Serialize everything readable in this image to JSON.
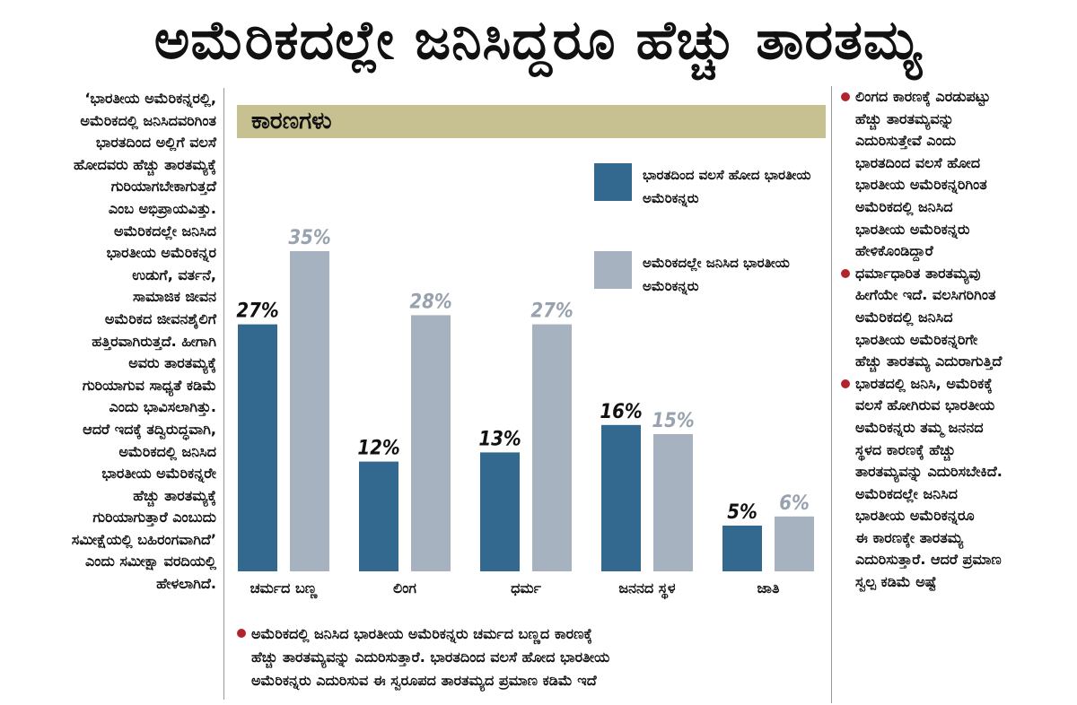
{
  "headline": "ಅಮೆರಿಕದಲ್ಲೇ ಜನಿಸಿದ್ದರೂ ಹೆಚ್ಚು ತಾರತಮ್ಯ",
  "left_column": [
    "‘ಭಾರತೀಯ ಅಮೆರಿಕನ್ನರಲ್ಲಿ,",
    "ಅಮೆರಿಕದಲ್ಲಿ ಜನಿಸಿದವರಿಗಿಂತ",
    "ಭಾರತದಿಂದ ಅಲ್ಲಿಗೆ ವಲಸೆ",
    "ಹೋದವರು ಹೆಚ್ಚು ತಾರತಮ್ಯಕ್ಕೆ",
    "ಗುರಿಯಾಗಬೇಕಾಗುತ್ತದೆ",
    "ಎಂಬ ಅಭಿಪ್ರಾಯವಿತ್ತು.",
    "ಅಮೆರಿಕದಲ್ಲೇ ಜನಿಸಿದ",
    "ಭಾರತೀಯ ಅಮೆರಿಕನ್ನರ",
    "ಉಡುಗೆ, ವರ್ತನೆ,",
    "ಸಾಮಾಜಿಕ ಜೀವನ",
    "ಅಮೆರಿಕದ ಜೀವನಶೈಲಿಗೆ",
    "ಹತ್ತಿರವಾಗಿರುತ್ತದೆ. ಹೀಗಾಗಿ",
    "ಅವರು ತಾರತಮ್ಯಕ್ಕೆ",
    "ಗುರಿಯಾಗುವ ಸಾಧ್ಯತೆ ಕಡಿಮೆ",
    "ಎಂದು ಭಾವಿಸಲಾಗಿತ್ತು.",
    "ಆದರೆ ಇದಕ್ಕೆ ತದ್ವಿರುದ್ಧವಾಗಿ,",
    "ಅಮೆರಿಕದಲ್ಲಿ ಜನಿಸಿದ",
    "ಭಾರತೀಯ ಅಮೆರಿಕನ್ನರೇ",
    "ಹೆಚ್ಚು ತಾರತಮ್ಯಕ್ಕೆ",
    "ಗುರಿಯಾಗುತ್ತಾರೆ ಎಂಬುದು",
    "ಸಮೀಕ್ಷೆಯಲ್ಲಿ ಬಹಿರಂಗವಾಗಿದೆ’",
    "ಎಂದು ಸಮೀಕ್ಷಾ ವರದಿಯಲ್ಲಿ",
    "ಹೇಳಲಾಗಿದೆ."
  ],
  "right_column": [
    {
      "lines": [
        "ಲಿಂಗದ ಕಾರಣಕ್ಕೆ ಎರಡುಪಟ್ಟು",
        "ಹೆಚ್ಚು ತಾರತಮ್ಯವನ್ನು",
        "ಎದುರಿಸುತ್ತೇವೆ ಎಂದು",
        "ಭಾರತದಿಂದ ವಲಸೆ ಹೋದ",
        "ಭಾರತೀಯ ಅಮೆರಿಕನ್ನರಿಗಿಂತ",
        "ಅಮೆರಿಕದಲ್ಲಿ ಜನಿಸಿದ",
        "ಭಾರತೀಯ ಅಮೆರಿಕನ್ನರು",
        "ಹೇಳಿಕೊಂಡಿದ್ದಾರೆ"
      ]
    },
    {
      "lines": [
        "ಧರ್ಮಾಧಾರಿತ ತಾರತಮ್ಯವು",
        "ಹೀಗೆಯೇ ಇದೆ. ವಲಸಿಗರಿಗಿಂತ",
        "ಅಮೆರಿಕದಲ್ಲಿ ಜನಿಸಿದ",
        "ಭಾರತೀಯ ಅಮೆರಿಕನ್ನರಿಗೇ",
        "ಹೆಚ್ಚು ತಾರತಮ್ಯ ಎದುರಾಗುತ್ತಿದೆ"
      ]
    },
    {
      "lines": [
        "ಭಾರತದಲ್ಲಿ ಜನಿಸಿ, ಅಮೆರಿಕಕ್ಕೆ",
        "ವಲಸೆ ಹೋಗಿರುವ ಭಾರತೀಯ",
        "ಅಮೆರಿಕನ್ನರು ತಮ್ಮ ಜನನದ",
        "ಸ್ಥಳದ ಕಾರಣಕ್ಕೆ ಹೆಚ್ಚು",
        "ತಾರತಮ್ಯವನ್ನು ಎದುರಿಸಬೇಕಿದೆ.",
        "ಅಮೆರಿಕದಲ್ಲೇ ಜನಿಸಿದ",
        "ಭಾರತೀಯ ಅಮೆರಿಕನ್ನರೂ",
        "ಈ ಕಾರಣಕ್ಕೇ ತಾರತಮ್ಯ",
        "ಎದುರಿಸುತ್ತಾರೆ. ಆದರೆ ಪ್ರಮಾಣ",
        "ಸ್ವಲ್ಪ ಕಡಿಮೆ ಅಷ್ಟೆ"
      ]
    }
  ],
  "bottom_note": [
    "ಅಮೆರಿಕದಲ್ಲಿ ಜನಿಸಿದ ಭಾರತೀಯ ಅಮೆರಿಕನ್ನರು ಚರ್ಮದ ಬಣ್ಣದ ಕಾರಣಕ್ಕೆ",
    "ಹೆಚ್ಚು ತಾರತಮ್ಯವನ್ನು ಎದುರಿಸುತ್ತಾರೆ. ಭಾರತದಿಂದ ವಲಸೆ ಹೋದ ಭಾರತೀಯ",
    "ಅಮೆರಿಕನ್ನರು ಎದುರಿಸುವ ಈ ಸ್ವರೂಪದ ತಾರತಮ್ಯದ ಪ್ರಮಾಣ ಕಡಿಮೆ ಇದೆ"
  ],
  "colors": {
    "series_immigrant": "#33698f",
    "series_us_born": "#a6b2c0",
    "label_immigrant": "#111111",
    "label_us_born": "#98a2ae",
    "reasons_bg": "#c7c191",
    "bullet": "#b2242b"
  },
  "chart_data": {
    "type": "bar",
    "title": "ಕಾರಣಗಳು",
    "categories": [
      "ಚರ್ಮದ ಬಣ್ಣ",
      "ಲಿಂಗ",
      "ಧರ್ಮ",
      "ಜನನದ ಸ್ಥಳ",
      "ಜಾತಿ"
    ],
    "series": [
      {
        "name": "ಭಾರತದಿಂದ ವಲಸೆ ಹೋದ ಭಾರತೀಯ ಅಮೆರಿಕನ್ನರು",
        "values": [
          27,
          12,
          13,
          16,
          5
        ]
      },
      {
        "name": "ಅಮೆರಿಕದಲ್ಲೇ ಜನಿಸಿದ ಭಾರತೀಯ ಅಮೆರಿಕನ್ನರು",
        "values": [
          35,
          28,
          27,
          15,
          6
        ]
      }
    ],
    "value_suffix": "%",
    "ylim": [
      0,
      40
    ],
    "legend": "top-right",
    "grid": false
  }
}
